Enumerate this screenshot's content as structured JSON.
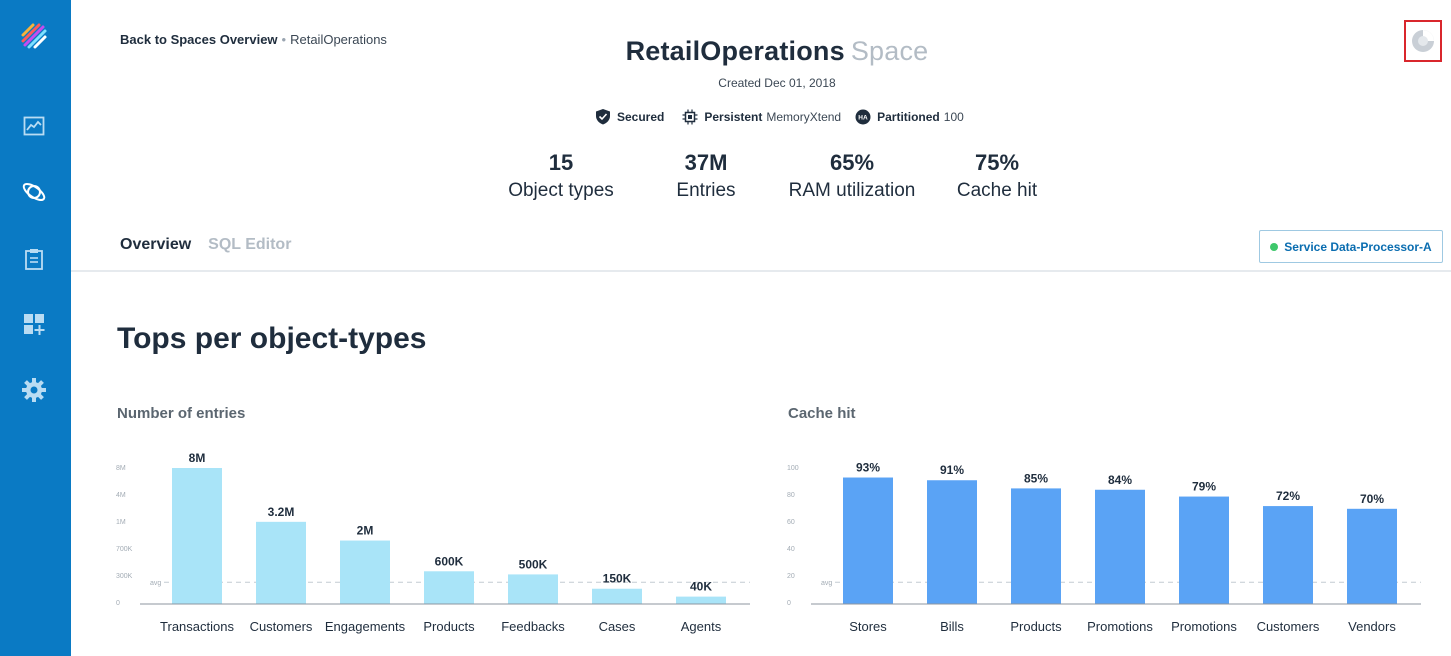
{
  "sidebar": {
    "items": [
      {
        "icon": "chart-icon"
      },
      {
        "icon": "planet-icon"
      },
      {
        "icon": "clipboard-icon"
      },
      {
        "icon": "add-widget-icon"
      },
      {
        "icon": "gear-icon"
      }
    ],
    "bg_color": "#0a7ac4"
  },
  "breadcrumb": {
    "back": "Back to Spaces Overview",
    "separator": "•",
    "current": "RetailOperations"
  },
  "header": {
    "title": "RetailOperations",
    "title_suffix": "Space",
    "created": "Created Dec 01, 2018"
  },
  "badges": {
    "secured": "Secured",
    "persistent_label": "Persistent",
    "persistent_value": "MemoryXtend",
    "partitioned_icon_text": "HA",
    "partitioned_label": "Partitioned",
    "partitioned_value": "100"
  },
  "stats": [
    {
      "value": "15",
      "label": "Object types"
    },
    {
      "value": "37M",
      "label": "Entries"
    },
    {
      "value": "65%",
      "label": "RAM utilization"
    },
    {
      "value": "75%",
      "label": "Cache hit"
    }
  ],
  "tabs": [
    {
      "label": "Overview",
      "active": true
    },
    {
      "label": "SQL Editor",
      "active": false
    }
  ],
  "service_button": {
    "label": "Service Data-Processor-A",
    "status_color": "#3ec76b"
  },
  "section_title": "Tops per object-types",
  "chart_data": [
    {
      "type": "bar",
      "title": "Number of entries",
      "categories": [
        "Transactions",
        "Customers",
        "Engagements",
        "Products",
        "Feedbacks",
        "Cases",
        "Agents"
      ],
      "values": [
        8000000,
        3200000,
        2000000,
        600000,
        500000,
        150000,
        40000
      ],
      "value_labels": [
        "8M",
        "3.2M",
        "2M",
        "600K",
        "500K",
        "150K",
        "40K"
      ],
      "y_ticks": [
        "0",
        "300K",
        "700K",
        "1M",
        "4M",
        "8M"
      ],
      "avg_label": "avg",
      "color": "#a9e4f8"
    },
    {
      "type": "bar",
      "title": "Cache hit",
      "categories": [
        "Stores",
        "Bills",
        "Products",
        "Promotions",
        "Promotions",
        "Customers",
        "Vendors"
      ],
      "values": [
        93,
        91,
        85,
        84,
        79,
        72,
        70
      ],
      "value_labels": [
        "93%",
        "91%",
        "85%",
        "84%",
        "79%",
        "72%",
        "70%"
      ],
      "y_ticks": [
        "0",
        "20",
        "40",
        "60",
        "80",
        "100"
      ],
      "avg_label": "avg",
      "color": "#5aa3f5"
    }
  ]
}
